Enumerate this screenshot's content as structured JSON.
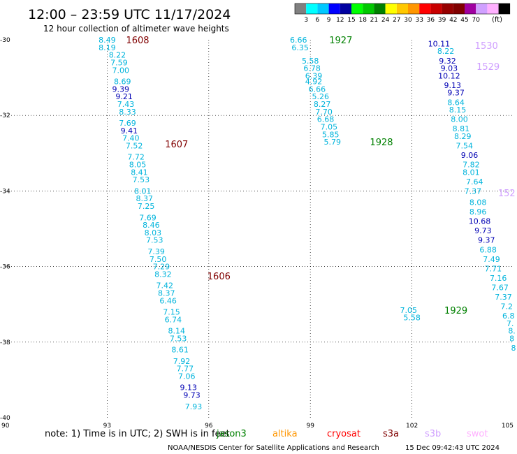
{
  "header": {
    "title": "12:00 – 23:59 UTC 11/17/2024",
    "subtitle": "12 hour collection of altimeter wave heights"
  },
  "colorbar": {
    "colors": [
      "#808080",
      "#00ffff",
      "#00c8ff",
      "#0000ff",
      "#0000a0",
      "#00ff00",
      "#00c800",
      "#008000",
      "#ffff00",
      "#ffc800",
      "#ff9600",
      "#ff0000",
      "#c80000",
      "#960000",
      "#800000",
      "#a000a0",
      "#d0a0ff",
      "#ffb0ff",
      "#000000"
    ],
    "labels": [
      "3",
      "6",
      "9",
      "12",
      "15",
      "18",
      "21",
      "24",
      "27",
      "30",
      "33",
      "36",
      "39",
      "42",
      "45",
      "70"
    ],
    "unit": "(ft)"
  },
  "chart_data": {
    "type": "scatter",
    "xlim": [
      90,
      105
    ],
    "ylim": [
      -40,
      -30
    ],
    "xticks": [
      "90",
      "93",
      "96",
      "99",
      "102",
      "105"
    ],
    "yticks": [
      "-30",
      "-32",
      "-34",
      "-36",
      "-38",
      "-40"
    ],
    "grid": true,
    "tracks": [
      {
        "color": "#800000",
        "points": [
          {
            "x": 93.0,
            "y": -30.0,
            "v": "8.49",
            "c": "#00b4dc"
          },
          {
            "x": 93.0,
            "y": -30.2,
            "v": "8.19",
            "c": "#00b4dc"
          },
          {
            "x": 93.3,
            "y": -30.4,
            "v": "8.22",
            "c": "#00b4dc"
          },
          {
            "x": 93.35,
            "y": -30.6,
            "v": "7.59",
            "c": "#00b4dc"
          },
          {
            "x": 93.4,
            "y": -30.8,
            "v": "7.00",
            "c": "#00b4dc"
          },
          {
            "x": 93.45,
            "y": -31.1,
            "v": "8.69",
            "c": "#00b4dc"
          },
          {
            "x": 93.4,
            "y": -31.3,
            "v": "9.39",
            "c": "#0000b4"
          },
          {
            "x": 93.5,
            "y": -31.5,
            "v": "9.21",
            "c": "#0000b4"
          },
          {
            "x": 93.55,
            "y": -31.7,
            "v": "7.43",
            "c": "#00b4dc"
          },
          {
            "x": 93.6,
            "y": -31.9,
            "v": "8.33",
            "c": "#00b4dc"
          },
          {
            "x": 93.6,
            "y": -32.2,
            "v": "7.69",
            "c": "#00b4dc"
          },
          {
            "x": 93.65,
            "y": -32.4,
            "v": "9.41",
            "c": "#0000b4"
          },
          {
            "x": 93.7,
            "y": -32.6,
            "v": "7.40",
            "c": "#00b4dc"
          },
          {
            "x": 93.8,
            "y": -32.8,
            "v": "7.52",
            "c": "#00b4dc"
          },
          {
            "x": 93.85,
            "y": -33.1,
            "v": "7.72",
            "c": "#00b4dc"
          },
          {
            "x": 93.9,
            "y": -33.3,
            "v": "8.05",
            "c": "#00b4dc"
          },
          {
            "x": 93.95,
            "y": -33.5,
            "v": "8.41",
            "c": "#00b4dc"
          },
          {
            "x": 94.0,
            "y": -33.7,
            "v": "7.53",
            "c": "#00b4dc"
          },
          {
            "x": 94.05,
            "y": -34.0,
            "v": "8.01",
            "c": "#00b4dc"
          },
          {
            "x": 94.1,
            "y": -34.2,
            "v": "8.37",
            "c": "#00b4dc"
          },
          {
            "x": 94.15,
            "y": -34.4,
            "v": "7.25",
            "c": "#00b4dc"
          },
          {
            "x": 94.2,
            "y": -34.7,
            "v": "7.69",
            "c": "#00b4dc"
          },
          {
            "x": 94.3,
            "y": -34.9,
            "v": "8.46",
            "c": "#00b4dc"
          },
          {
            "x": 94.35,
            "y": -35.1,
            "v": "8.03",
            "c": "#00b4dc"
          },
          {
            "x": 94.4,
            "y": -35.3,
            "v": "7.53",
            "c": "#00b4dc"
          },
          {
            "x": 94.45,
            "y": -35.6,
            "v": "7.39",
            "c": "#00b4dc"
          },
          {
            "x": 94.5,
            "y": -35.8,
            "v": "7.50",
            "c": "#00b4dc"
          },
          {
            "x": 94.6,
            "y": -36.0,
            "v": "7.29",
            "c": "#00b4dc"
          },
          {
            "x": 94.65,
            "y": -36.2,
            "v": "8.32",
            "c": "#00b4dc"
          },
          {
            "x": 94.7,
            "y": -36.5,
            "v": "7.42",
            "c": "#00b4dc"
          },
          {
            "x": 94.75,
            "y": -36.7,
            "v": "8.37",
            "c": "#00b4dc"
          },
          {
            "x": 94.8,
            "y": -36.9,
            "v": "6.46",
            "c": "#00b4dc"
          },
          {
            "x": 94.9,
            "y": -37.2,
            "v": "7.15",
            "c": "#00b4dc"
          },
          {
            "x": 94.95,
            "y": -37.4,
            "v": "6.74",
            "c": "#00b4dc"
          },
          {
            "x": 95.05,
            "y": -37.7,
            "v": "8.14",
            "c": "#00b4dc"
          },
          {
            "x": 95.1,
            "y": -37.9,
            "v": "7.53",
            "c": "#00b4dc"
          },
          {
            "x": 95.15,
            "y": -38.2,
            "v": "8.61",
            "c": "#00b4dc"
          },
          {
            "x": 95.2,
            "y": -38.5,
            "v": "7.92",
            "c": "#00b4dc"
          },
          {
            "x": 95.3,
            "y": -38.7,
            "v": "7.77",
            "c": "#00b4dc"
          },
          {
            "x": 95.35,
            "y": -38.9,
            "v": "7.06",
            "c": "#00b4dc"
          },
          {
            "x": 95.4,
            "y": -39.2,
            "v": "9.13",
            "c": "#0000b4"
          },
          {
            "x": 95.5,
            "y": -39.4,
            "v": "9.73",
            "c": "#0000b4"
          },
          {
            "x": 95.55,
            "y": -39.7,
            "v": "7.93",
            "c": "#00b4dc"
          }
        ]
      },
      {
        "color": "#008000",
        "points": [
          {
            "x": 98.65,
            "y": -30.0,
            "v": "6.66",
            "c": "#00b4dc"
          },
          {
            "x": 98.7,
            "y": -30.2,
            "v": "6.35",
            "c": "#00b4dc"
          },
          {
            "x": 99.0,
            "y": -30.55,
            "v": "5.58",
            "c": "#00b4dc"
          },
          {
            "x": 99.05,
            "y": -30.75,
            "v": "6.78",
            "c": "#00b4dc"
          },
          {
            "x": 99.1,
            "y": -30.95,
            "v": "6.39",
            "c": "#00b4dc"
          },
          {
            "x": 99.1,
            "y": -31.1,
            "v": "4.92",
            "c": "#00b4dc"
          },
          {
            "x": 99.2,
            "y": -31.3,
            "v": "6.66",
            "c": "#00b4dc"
          },
          {
            "x": 99.3,
            "y": -31.5,
            "v": "5.26",
            "c": "#00b4dc"
          },
          {
            "x": 99.35,
            "y": -31.7,
            "v": "8.27",
            "c": "#00b4dc"
          },
          {
            "x": 99.4,
            "y": -31.9,
            "v": "7.70",
            "c": "#00b4dc"
          },
          {
            "x": 99.45,
            "y": -32.1,
            "v": "6.68",
            "c": "#00b4dc"
          },
          {
            "x": 99.55,
            "y": -32.3,
            "v": "7.05",
            "c": "#00b4dc"
          },
          {
            "x": 99.6,
            "y": -32.5,
            "v": "5.85",
            "c": "#00b4dc"
          },
          {
            "x": 99.65,
            "y": -32.7,
            "v": "5.79",
            "c": "#00b4dc"
          }
        ]
      },
      {
        "color": "#d0a0ff",
        "points": [
          {
            "x": 102.8,
            "y": -30.1,
            "v": "10.11",
            "c": "#0000b4"
          },
          {
            "x": 103.0,
            "y": -30.3,
            "v": "8.22",
            "c": "#00b4dc"
          },
          {
            "x": 103.05,
            "y": -30.55,
            "v": "9.32",
            "c": "#0000b4"
          },
          {
            "x": 103.1,
            "y": -30.75,
            "v": "9.03",
            "c": "#0000b4"
          },
          {
            "x": 103.1,
            "y": -30.95,
            "v": "10.12",
            "c": "#0000b4"
          },
          {
            "x": 103.2,
            "y": -31.2,
            "v": "9.13",
            "c": "#0000b4"
          },
          {
            "x": 103.3,
            "y": -31.4,
            "v": "9.37",
            "c": "#0000b4"
          },
          {
            "x": 103.3,
            "y": -31.65,
            "v": "8.64",
            "c": "#00b4dc"
          },
          {
            "x": 103.35,
            "y": -31.85,
            "v": "8.15",
            "c": "#00b4dc"
          },
          {
            "x": 103.4,
            "y": -32.1,
            "v": "8.00",
            "c": "#00b4dc"
          },
          {
            "x": 103.45,
            "y": -32.35,
            "v": "8.81",
            "c": "#00b4dc"
          },
          {
            "x": 103.5,
            "y": -32.55,
            "v": "8.29",
            "c": "#00b4dc"
          },
          {
            "x": 103.55,
            "y": -32.8,
            "v": "7.54",
            "c": "#00b4dc"
          },
          {
            "x": 103.7,
            "y": -33.05,
            "v": "9.06",
            "c": "#0000b4"
          },
          {
            "x": 103.75,
            "y": -33.3,
            "v": "7.82",
            "c": "#00b4dc"
          },
          {
            "x": 103.75,
            "y": -33.5,
            "v": "8.01",
            "c": "#00b4dc"
          },
          {
            "x": 103.85,
            "y": -33.75,
            "v": "7.64",
            "c": "#00b4dc"
          },
          {
            "x": 103.8,
            "y": -34.0,
            "v": "7.37",
            "c": "#00b4dc"
          },
          {
            "x": 103.95,
            "y": -34.3,
            "v": "8.08",
            "c": "#00b4dc"
          },
          {
            "x": 103.95,
            "y": -34.55,
            "v": "8.96",
            "c": "#00b4dc"
          },
          {
            "x": 104.0,
            "y": -34.8,
            "v": "10.68",
            "c": "#0000b4"
          },
          {
            "x": 104.1,
            "y": -35.05,
            "v": "9.73",
            "c": "#0000b4"
          },
          {
            "x": 104.2,
            "y": -35.3,
            "v": "9.37",
            "c": "#0000b4"
          },
          {
            "x": 104.25,
            "y": -35.55,
            "v": "6.88",
            "c": "#00b4dc"
          },
          {
            "x": 104.35,
            "y": -35.8,
            "v": "7.49",
            "c": "#00b4dc"
          },
          {
            "x": 104.4,
            "y": -36.05,
            "v": "7.71",
            "c": "#00b4dc"
          },
          {
            "x": 104.55,
            "y": -36.3,
            "v": "7.16",
            "c": "#00b4dc"
          },
          {
            "x": 104.6,
            "y": -36.55,
            "v": "7.67",
            "c": "#00b4dc"
          },
          {
            "x": 104.7,
            "y": -36.8,
            "v": "7.37",
            "c": "#00b4dc"
          },
          {
            "x": 104.8,
            "y": -37.05,
            "v": "7.2",
            "c": "#00b4dc"
          },
          {
            "x": 104.85,
            "y": -37.3,
            "v": "6.8",
            "c": "#00b4dc"
          },
          {
            "x": 104.9,
            "y": -37.5,
            "v": "7.",
            "c": "#00b4dc"
          },
          {
            "x": 104.95,
            "y": -37.7,
            "v": "8.",
            "c": "#00b4dc"
          },
          {
            "x": 104.95,
            "y": -37.9,
            "v": "8",
            "c": "#00b4dc"
          },
          {
            "x": 105.0,
            "y": -38.15,
            "v": "8",
            "c": "#00b4dc"
          }
        ]
      },
      {
        "color": "#008000",
        "points": [
          {
            "x": 101.9,
            "y": -37.15,
            "v": "7.05",
            "c": "#00b4dc"
          },
          {
            "x": 102.0,
            "y": -37.35,
            "v": "5.58",
            "c": "#00b4dc"
          }
        ]
      }
    ],
    "time_labels": [
      {
        "x": 93.9,
        "y": -30.0,
        "t": "1608",
        "c": "#800000"
      },
      {
        "x": 95.05,
        "y": -32.75,
        "t": "1607",
        "c": "#800000"
      },
      {
        "x": 96.3,
        "y": -36.25,
        "t": "1606",
        "c": "#800000"
      },
      {
        "x": 99.9,
        "y": -30.0,
        "t": "1927",
        "c": "#008000"
      },
      {
        "x": 101.1,
        "y": -32.7,
        "t": "1928",
        "c": "#008000"
      },
      {
        "x": 103.3,
        "y": -37.15,
        "t": "1929",
        "c": "#008000"
      },
      {
        "x": 104.2,
        "y": -30.15,
        "t": "1530",
        "c": "#d0a0ff"
      },
      {
        "x": 104.25,
        "y": -30.7,
        "t": "1529",
        "c": "#d0a0ff"
      },
      {
        "x": 104.8,
        "y": -34.05,
        "t": "152",
        "c": "#d0a0ff"
      }
    ]
  },
  "footer": {
    "note": "note:  1) Time is in UTC; 2) SWH is in feet",
    "satellites": [
      {
        "name": "jason3",
        "color": "#008000"
      },
      {
        "name": "altika",
        "color": "#ff9600"
      },
      {
        "name": "cryosat",
        "color": "#ff0000"
      },
      {
        "name": "s3a",
        "color": "#800000"
      },
      {
        "name": "s3b",
        "color": "#d0a0ff"
      },
      {
        "name": "swot",
        "color": "#ffb0ff"
      }
    ],
    "credit": "NOAA/NESDIS Center for Satellite Applications and Research",
    "timestamp": "15 Dec 09:42:43 UTC 2024"
  }
}
